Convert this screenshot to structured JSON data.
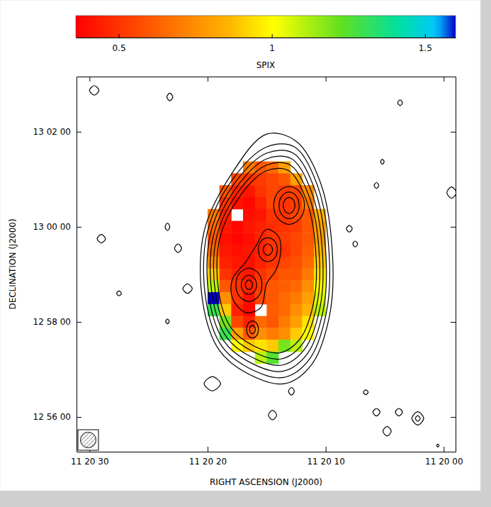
{
  "chart_data": {
    "type": "contour",
    "x_label": "RIGHT ASCENSION (J2000)",
    "y_label": "DECLINATION (J2000)",
    "xlim": [
      31.1,
      -1
    ],
    "xticks": [
      {
        "value": 30,
        "label": "11 20 30"
      },
      {
        "value": 20,
        "label": "11 20 20"
      },
      {
        "value": 10,
        "label": "11 20 10"
      },
      {
        "value": 0,
        "label": "11 20 00"
      }
    ],
    "ylim": [
      -4.73,
      3.16
    ],
    "yticks": [
      {
        "value": -4,
        "label": "12 56 00"
      },
      {
        "value": -2,
        "label": "12 58 00"
      },
      {
        "value": 0,
        "label": "13 00 00"
      },
      {
        "value": 2,
        "label": "13 02 00"
      }
    ],
    "colorbar": {
      "label": "SPIX",
      "range": [
        0.36,
        1.6
      ],
      "ticks": [
        0.5,
        1,
        1.5
      ]
    },
    "spix": {
      "x": [
        20.5,
        19.5,
        18.5,
        17.5,
        16.5,
        15.5,
        14.5,
        13.5,
        12.5,
        11.5,
        10.5,
        9.5
      ],
      "y": [
        1.25,
        1.0,
        0.75,
        0.5,
        0.25,
        0,
        -0.25,
        -0.5,
        -0.75,
        -1.0,
        -1.25,
        -1.5,
        -1.75,
        -2.0,
        -2.25,
        -2.5,
        -2.75
      ],
      "z": [
        [
          null,
          null,
          null,
          null,
          0.7,
          0.6,
          0.65,
          0.8,
          null,
          null,
          null,
          null
        ],
        [
          null,
          null,
          null,
          0.55,
          0.5,
          0.52,
          0.55,
          0.6,
          0.8,
          null,
          null,
          null
        ],
        [
          null,
          null,
          0.6,
          0.45,
          0.42,
          0.5,
          0.55,
          0.52,
          0.55,
          0.75,
          null,
          null
        ],
        [
          null,
          null,
          0.5,
          0.4,
          0.38,
          0.45,
          0.55,
          0.5,
          0.52,
          0.7,
          null,
          null
        ],
        [
          null,
          0.7,
          0.45,
          null,
          0.4,
          0.42,
          0.5,
          0.5,
          0.55,
          0.6,
          0.85,
          null
        ],
        [
          null,
          0.65,
          0.42,
          0.38,
          0.42,
          0.45,
          0.48,
          0.5,
          0.52,
          0.6,
          0.8,
          null
        ],
        [
          null,
          0.6,
          0.4,
          0.38,
          0.4,
          0.45,
          0.5,
          0.52,
          0.55,
          0.6,
          0.8,
          null
        ],
        [
          null,
          0.65,
          0.42,
          0.4,
          0.42,
          0.45,
          0.5,
          0.5,
          0.55,
          0.62,
          0.85,
          null
        ],
        [
          null,
          0.75,
          0.45,
          0.42,
          0.4,
          0.45,
          0.5,
          0.55,
          0.58,
          0.65,
          0.9,
          null
        ],
        [
          null,
          0.9,
          0.5,
          0.45,
          0.42,
          0.5,
          0.55,
          0.6,
          0.6,
          0.7,
          0.95,
          null
        ],
        [
          null,
          1.1,
          0.6,
          0.5,
          0.45,
          0.52,
          0.6,
          0.62,
          0.65,
          0.75,
          1.0,
          null
        ],
        [
          null,
          1.8,
          0.75,
          0.5,
          0.4,
          0.55,
          0.6,
          0.65,
          0.7,
          0.8,
          1.05,
          null
        ],
        [
          null,
          1.3,
          0.9,
          0.45,
          0.38,
          null,
          0.62,
          0.65,
          0.75,
          0.85,
          1.1,
          null
        ],
        [
          null,
          null,
          1.2,
          0.55,
          0.45,
          0.65,
          0.6,
          0.7,
          0.8,
          0.95,
          null,
          null
        ],
        [
          null,
          null,
          1.3,
          0.8,
          0.6,
          0.75,
          0.7,
          0.75,
          0.9,
          1.0,
          null,
          null
        ],
        [
          null,
          null,
          null,
          1.0,
          0.9,
          0.95,
          0.9,
          1.2,
          1.1,
          null,
          null,
          null
        ],
        [
          null,
          null,
          null,
          null,
          null,
          1.1,
          1.25,
          null,
          null,
          null,
          null,
          null
        ]
      ]
    },
    "contours": [
      {
        "x": [
          15,
          12.5,
          10.4,
          9.4,
          9.7,
          11.2,
          13.5,
          16.5,
          19.0,
          20.4,
          20.3,
          18.0
        ],
        "y": [
          1.95,
          1.8,
          0.9,
          -0.7,
          -1.9,
          -2.9,
          -3.3,
          -3.1,
          -2.6,
          -1.6,
          -0.1,
          1.1
        ]
      },
      {
        "x": [
          15,
          12.63,
          10.63,
          9.68,
          9.97,
          11.39,
          13.58,
          16.43,
          18.8,
          20.13,
          20.04,
          17.85
        ],
        "y": [
          1.68,
          1.68,
          0.82,
          -0.7,
          -1.84,
          -2.79,
          -3.17,
          -2.98,
          -2.51,
          -1.56,
          -0.13,
          1.01
        ]
      },
      {
        "x": [
          15,
          12.75,
          10.86,
          9.96,
          10.23,
          11.58,
          13.65,
          16.35,
          18.6,
          19.86,
          19.77,
          17.7
        ],
        "y": [
          1.55,
          1.55,
          0.74,
          -0.7,
          -1.78,
          -2.68,
          -3.04,
          -2.86,
          -2.41,
          -1.51,
          -0.16,
          0.92
        ]
      },
      {
        "x": [
          15,
          12.88,
          11.09,
          10.24,
          10.5,
          11.77,
          13.73,
          16.28,
          18.4,
          19.59,
          19.51,
          17.55
        ],
        "y": [
          1.43,
          1.43,
          0.66,
          -0.7,
          -1.72,
          -2.57,
          -2.91,
          -2.74,
          -2.32,
          -1.47,
          -0.19,
          0.83
        ]
      },
      {
        "x": [
          15,
          13.0,
          11.32,
          10.52,
          10.76,
          11.96,
          13.8,
          16.2,
          18.2,
          19.32,
          19.24,
          17.4
        ],
        "y": [
          1.3,
          1.3,
          0.58,
          -0.7,
          -1.66,
          -2.46,
          -2.78,
          -2.62,
          -2.22,
          -1.42,
          -0.22,
          0.74
        ]
      },
      {
        "x": [
          15,
          13.13,
          11.55,
          10.8,
          11.03,
          12.15,
          13.88,
          16.13,
          18.0,
          19.05,
          18.98,
          17.25
        ],
        "y": [
          1.18,
          1.18,
          0.5,
          -0.7,
          -1.6,
          -2.35,
          -2.65,
          -2.5,
          -2.13,
          -1.38,
          -0.25,
          0.65
        ]
      },
      {
        "x": [
          14.4,
          14.02,
          13.1,
          12.18,
          11.8,
          12.18,
          13.1,
          14.02
        ],
        "y": [
          0.45,
          0.73,
          0.85,
          0.73,
          0.45,
          0.17,
          0.05,
          0.17
        ]
      },
      {
        "x": [
          13.95,
          13.7,
          13.1,
          12.5,
          12.25,
          12.5,
          13.1,
          13.7
        ],
        "y": [
          0.45,
          0.65,
          0.73,
          0.65,
          0.45,
          0.25,
          0.17,
          0.25
        ]
      },
      {
        "x": [
          13.6,
          13.45,
          13.1,
          12.75,
          12.6,
          12.75,
          13.1,
          13.45
        ],
        "y": [
          0.45,
          0.57,
          0.62,
          0.57,
          0.45,
          0.33,
          0.28,
          0.33
        ]
      },
      {
        "x": [
          14.0,
          15.0,
          15.9,
          16.8,
          17.9,
          17.9,
          16.8,
          15.5,
          15.0,
          14.2,
          13.8
        ],
        "y": [
          -0.2,
          -0.05,
          -0.4,
          -0.75,
          -1.1,
          -1.5,
          -1.8,
          -1.7,
          -1.2,
          -0.9,
          -0.5
        ]
      },
      {
        "x": [
          15.7,
          15.47,
          14.9,
          14.33,
          14.1,
          14.33,
          14.9,
          15.47
        ],
        "y": [
          -0.48,
          -0.3,
          -0.23,
          -0.3,
          -0.48,
          -0.66,
          -0.73,
          -0.66
        ]
      },
      {
        "x": [
          15.3,
          15.18,
          14.9,
          14.62,
          14.5,
          14.62,
          14.9,
          15.18
        ],
        "y": [
          -0.48,
          -0.4,
          -0.36,
          -0.4,
          -0.48,
          -0.56,
          -0.6,
          -0.56
        ]
      },
      {
        "x": [
          17.6,
          17.28,
          16.5,
          15.72,
          15.4,
          15.72,
          16.5,
          17.28
        ],
        "y": [
          -1.22,
          -0.97,
          -0.87,
          -0.97,
          -1.22,
          -1.47,
          -1.57,
          -1.47
        ]
      },
      {
        "x": [
          17.15,
          16.96,
          16.5,
          16.04,
          15.85,
          16.04,
          16.5,
          16.96
        ],
        "y": [
          -1.22,
          -1.08,
          -1.02,
          -1.08,
          -1.22,
          -1.36,
          -1.42,
          -1.36
        ]
      },
      {
        "x": [
          16.8,
          16.71,
          16.5,
          16.29,
          16.2,
          16.29,
          16.5,
          16.71
        ],
        "y": [
          -1.22,
          -1.15,
          -1.12,
          -1.15,
          -1.22,
          -1.29,
          -1.32,
          -1.29
        ]
      },
      {
        "x": [
          16.7,
          16.55,
          16.2,
          15.85,
          15.7,
          15.85,
          16.2,
          16.55
        ],
        "y": [
          -2.16,
          -2.03,
          -1.98,
          -2.03,
          -2.16,
          -2.29,
          -2.34,
          -2.29
        ]
      },
      {
        "x": [
          16.45,
          16.38,
          16.2,
          16.02,
          15.95,
          16.02,
          16.2,
          16.38
        ],
        "y": [
          -2.16,
          -2.1,
          -2.07,
          -2.1,
          -2.16,
          -2.22,
          -2.25,
          -2.22
        ]
      },
      {
        "x": [
          30.0,
          29.6,
          29.2,
          29.6
        ],
        "y": [
          2.87,
          2.97,
          2.87,
          2.77
        ]
      },
      {
        "x": [
          23.45,
          23.2,
          22.95,
          23.2
        ],
        "y": [
          2.73,
          2.81,
          2.73,
          2.65
        ]
      },
      {
        "x": [
          3.9,
          3.7,
          3.5,
          3.7
        ],
        "y": [
          2.61,
          2.67,
          2.61,
          2.55
        ]
      },
      {
        "x": [
          5.35,
          5.2,
          5.05,
          5.2
        ],
        "y": [
          1.37,
          1.42,
          1.37,
          1.32
        ]
      },
      {
        "x": [
          5.9,
          5.7,
          5.5,
          5.7
        ],
        "y": [
          0.87,
          0.93,
          0.87,
          0.81
        ]
      },
      {
        "x": [
          -0.26,
          -0.66,
          -1.06,
          -0.66
        ],
        "y": [
          0.72,
          0.84,
          0.72,
          0.6
        ]
      },
      {
        "x": [
          29.35,
          29.0,
          28.65,
          29.0
        ],
        "y": [
          -0.25,
          -0.16,
          -0.25,
          -0.34
        ]
      },
      {
        "x": [
          23.6,
          23.4,
          23.2,
          23.4
        ],
        "y": [
          0,
          0.08,
          0,
          -0.08
        ]
      },
      {
        "x": [
          22.8,
          22.5,
          22.2,
          22.5
        ],
        "y": [
          -0.45,
          -0.36,
          -0.45,
          -0.54
        ]
      },
      {
        "x": [
          22.1,
          21.7,
          21.3,
          21.7
        ],
        "y": [
          -1.3,
          -1.2,
          -1.3,
          -1.4
        ]
      },
      {
        "x": [
          27.7,
          27.5,
          27.3,
          27.5
        ],
        "y": [
          -1.4,
          -1.35,
          -1.4,
          -1.45
        ]
      },
      {
        "x": [
          23.55,
          23.4,
          23.25,
          23.4
        ],
        "y": [
          -1.99,
          -1.94,
          -1.99,
          -2.04
        ]
      },
      {
        "x": [
          8.25,
          8.0,
          7.75,
          8.0
        ],
        "y": [
          -0.04,
          0.03,
          -0.04,
          -0.11
        ]
      },
      {
        "x": [
          7.7,
          7.5,
          7.3,
          7.5
        ],
        "y": [
          -0.36,
          -0.3,
          -0.36,
          -0.42
        ]
      },
      {
        "x": [
          20.3,
          19.6,
          18.9,
          19.6
        ],
        "y": [
          -3.3,
          -3.15,
          -3.3,
          -3.45
        ]
      },
      {
        "x": [
          13.15,
          12.9,
          12.65,
          12.9
        ],
        "y": [
          -3.46,
          -3.38,
          -3.46,
          -3.54
        ]
      },
      {
        "x": [
          14.85,
          14.5,
          14.15,
          14.5
        ],
        "y": [
          -3.96,
          -3.86,
          -3.96,
          -4.06
        ]
      },
      {
        "x": [
          6.8,
          6.6,
          6.4,
          6.6
        ],
        "y": [
          -3.48,
          -3.43,
          -3.48,
          -3.53
        ]
      },
      {
        "x": [
          6.0,
          5.7,
          5.4,
          5.7
        ],
        "y": [
          -3.9,
          -3.82,
          -3.9,
          -3.98
        ]
      },
      {
        "x": [
          4.1,
          3.8,
          3.5,
          3.8
        ],
        "y": [
          -3.9,
          -3.82,
          -3.9,
          -3.98
        ]
      },
      {
        "x": [
          5.15,
          4.8,
          4.45,
          4.8
        ],
        "y": [
          -4.3,
          -4.2,
          -4.3,
          -4.4
        ]
      },
      {
        "x": [
          2.7,
          2.2,
          1.7,
          2.2
        ],
        "y": [
          -4.03,
          -3.89,
          -4.03,
          -4.17
        ]
      },
      {
        "x": [
          2.4,
          2.2,
          2.0,
          2.2
        ],
        "y": [
          -4.03,
          -3.97,
          -4.03,
          -4.09
        ]
      },
      {
        "x": [
          0.6,
          0.5,
          0.4,
          0.5
        ],
        "y": [
          -4.6,
          -4.57,
          -4.6,
          -4.63
        ]
      }
    ]
  }
}
